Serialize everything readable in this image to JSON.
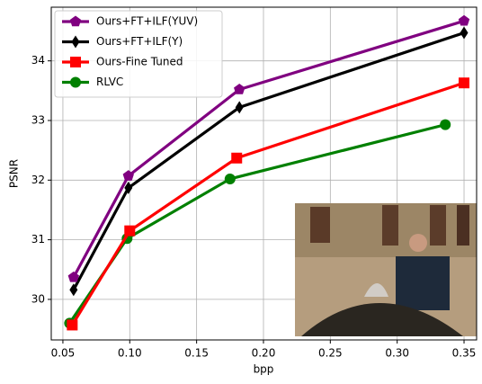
{
  "chart_data": {
    "type": "line",
    "x_label": "bpp",
    "y_label": "PSNR",
    "xlim": [
      0.0413,
      0.3594
    ],
    "ylim": [
      29.32,
      34.9
    ],
    "xticks": [
      0.05,
      {
        "value": 0.1,
        "label": "0.10"
      },
      0.15,
      {
        "value": 0.2,
        "label": "0.20"
      },
      0.25,
      {
        "value": 0.3,
        "label": "0.30"
      },
      0.35
    ],
    "yticks": [
      30,
      31,
      32,
      33,
      34
    ],
    "grid": true,
    "legend": "upper left",
    "series": [
      {
        "name": "Ours+FT+ILF(YUV)",
        "color": "#800080",
        "marker": "pentagon",
        "x": [
          0.058,
          0.099,
          0.182,
          0.35
        ],
        "values": [
          30.37,
          32.07,
          33.52,
          34.67
        ]
      },
      {
        "name": "Ours+FT+ILF(Y)",
        "color": "#000000",
        "marker": "diamond",
        "x": [
          0.058,
          0.099,
          0.182,
          0.35
        ],
        "values": [
          30.16,
          31.87,
          33.22,
          34.47
        ]
      },
      {
        "name": "Ours-Fine Tuned",
        "color": "#ff0000",
        "marker": "square",
        "x": [
          0.057,
          0.1,
          0.18,
          0.35
        ],
        "values": [
          29.57,
          31.15,
          32.37,
          33.63
        ]
      },
      {
        "name": "RLVC",
        "color": "#008000",
        "marker": "circle",
        "x": [
          0.055,
          0.098,
          0.175,
          0.336
        ],
        "values": [
          29.6,
          31.02,
          32.02,
          32.93
        ]
      }
    ]
  }
}
